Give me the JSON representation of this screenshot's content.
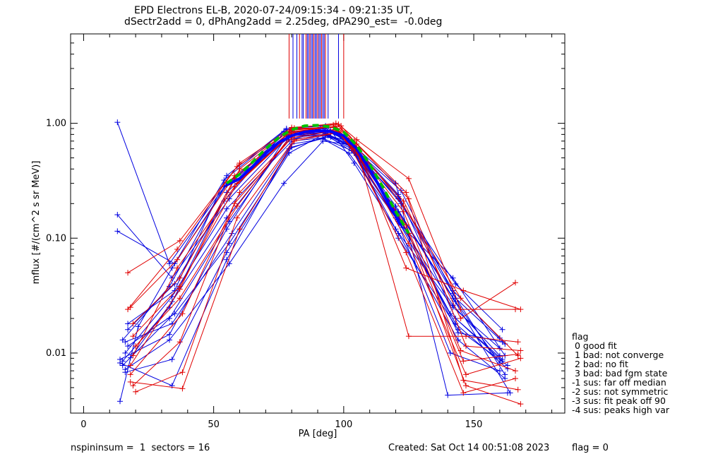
{
  "title_line1": "EPD Electrons EL-B, 2020-07-24/09:15:34 - 09:21:35 UT,",
  "title_line2": "dSectr2add = 0, dPhAng2add = 2.25deg, dPA290_est=  -0.0deg",
  "footer": {
    "left": "nspininsum =  1  sectors = 16",
    "created": "Created: Sat Oct 14 00:51:08 2023",
    "flag": "flag = 0"
  },
  "legend": {
    "title": "flag",
    "items": [
      " 0 good fit",
      " 1 bad: not converge",
      " 2 bad: no fit",
      " 3 bad: bad fgm state",
      "-1 sus: far off median",
      "-2 sus: not symmetric",
      "-3 sus: fit peak off 90",
      "-4 sus: peaks high var"
    ]
  },
  "colors": {
    "red": "#e00000",
    "blue": "#0000e0",
    "fit": "#00c000",
    "mean": "#0000ff"
  },
  "chart_data": {
    "type": "line",
    "xlabel": "PA [deg]",
    "ylabel": "mflux [#/(cm^2 s sr MeV)]",
    "xlim": [
      -5,
      185
    ],
    "ylim": [
      0.003,
      6.0
    ],
    "yscale": "log",
    "xticks": [
      0,
      50,
      100,
      150
    ],
    "xtick_labels": [
      "0",
      "50",
      "100",
      "150"
    ],
    "yticks": [
      0.01,
      0.1,
      1.0
    ],
    "ytick_labels": [
      "0.01",
      "0.10",
      "1.00"
    ],
    "vertical_lines_x": [
      79,
      80.5,
      82,
      83,
      84,
      84.5,
      85.5,
      86,
      86.5,
      87,
      87.5,
      88,
      88.5,
      89,
      89.5,
      90,
      90.5,
      91,
      91.5,
      92,
      92.5,
      93,
      94,
      98,
      100
    ],
    "vertical_lines_ymin": 1.1,
    "series": [
      {
        "color": "blue",
        "x": [
          14,
          21,
          34,
          55,
          78,
          93,
          103,
          121,
          142,
          164
        ],
        "y": [
          0.0038,
          0.017,
          0.055,
          0.29,
          0.72,
          0.78,
          0.6,
          0.17,
          0.03,
          0.0045
        ]
      },
      {
        "color": "blue",
        "x": [
          13,
          34,
          56,
          79,
          94,
          103,
          122,
          142,
          162
        ],
        "y": [
          0.16,
          0.045,
          0.22,
          0.78,
          0.8,
          0.62,
          0.13,
          0.045,
          0.0095
        ]
      },
      {
        "color": "blue",
        "x": [
          13,
          35,
          54,
          77,
          93,
          102,
          121,
          143,
          161
        ],
        "y": [
          0.115,
          0.06,
          0.32,
          0.85,
          0.86,
          0.7,
          0.24,
          0.02,
          0.0088
        ]
      },
      {
        "color": "blue",
        "x": [
          15,
          33,
          55,
          79,
          92,
          104,
          120,
          142,
          160
        ],
        "y": [
          0.0085,
          0.025,
          0.25,
          0.8,
          0.83,
          0.55,
          0.12,
          0.025,
          0.011
        ]
      },
      {
        "color": "blue",
        "x": [
          16,
          34,
          55,
          80,
          95,
          103,
          121,
          144,
          163
        ],
        "y": [
          0.01,
          0.031,
          0.18,
          0.7,
          0.76,
          0.62,
          0.1,
          0.016,
          0.0078
        ]
      },
      {
        "color": "blue",
        "x": [
          15,
          33,
          56,
          79,
          93,
          102,
          120,
          141,
          160
        ],
        "y": [
          0.0078,
          0.02,
          0.14,
          0.75,
          0.8,
          0.65,
          0.15,
          0.01,
          0.007
        ]
      },
      {
        "color": "blue",
        "x": [
          17,
          35,
          54,
          78,
          91,
          101,
          122,
          143,
          162
        ],
        "y": [
          0.016,
          0.04,
          0.21,
          0.88,
          0.92,
          0.72,
          0.2,
          0.03,
          0.012
        ]
      },
      {
        "color": "blue",
        "x": [
          16,
          33,
          56,
          77,
          92,
          103,
          121,
          142,
          160
        ],
        "y": [
          0.0072,
          0.013,
          0.06,
          0.3,
          0.7,
          0.65,
          0.23,
          0.035,
          0.0135
        ]
      },
      {
        "color": "blue",
        "x": [
          14,
          34,
          55,
          79,
          94,
          102,
          120,
          140,
          163
        ],
        "y": [
          0.0082,
          0.0052,
          0.065,
          0.6,
          0.78,
          0.7,
          0.3,
          0.0043,
          0.0045
        ]
      },
      {
        "color": "blue",
        "x": [
          17,
          35,
          55,
          78,
          93,
          103,
          121,
          143,
          161
        ],
        "y": [
          0.018,
          0.035,
          0.35,
          0.9,
          0.95,
          0.62,
          0.22,
          0.04,
          0.016
        ]
      },
      {
        "color": "blue",
        "x": [
          16,
          34,
          57,
          80,
          92,
          102,
          122,
          142,
          160
        ],
        "y": [
          0.0125,
          0.018,
          0.11,
          0.66,
          0.73,
          0.55,
          0.13,
          0.026,
          0.0095
        ]
      },
      {
        "color": "blue",
        "x": [
          18,
          34,
          55,
          79,
          95,
          104,
          121,
          144,
          162
        ],
        "y": [
          0.0091,
          0.028,
          0.15,
          0.72,
          0.87,
          0.45,
          0.11,
          0.013,
          0.006
        ]
      },
      {
        "color": "blue",
        "x": [
          15,
          33,
          54,
          78,
          93,
          102,
          120,
          141,
          161
        ],
        "y": [
          0.013,
          0.038,
          0.28,
          0.83,
          0.9,
          0.68,
          0.17,
          0.022,
          0.0085
        ]
      },
      {
        "color": "blue",
        "x": [
          17,
          35,
          56,
          80,
          92,
          103,
          121,
          143,
          163
        ],
        "y": [
          0.0115,
          0.022,
          0.09,
          0.62,
          0.74,
          0.58,
          0.14,
          0.018,
          0.0073
        ]
      },
      {
        "color": "blue",
        "x": [
          16,
          34,
          55,
          79,
          93,
          102,
          122,
          142,
          162
        ],
        "y": [
          0.0068,
          0.0088,
          0.075,
          0.55,
          0.82,
          0.66,
          0.26,
          0.033,
          0.0065
        ]
      },
      {
        "color": "blue",
        "x": [
          14,
          33,
          55,
          78,
          94,
          101,
          120,
          143,
          160
        ],
        "y": [
          0.0088,
          0.0145,
          0.12,
          0.77,
          0.84,
          0.74,
          0.19,
          0.028,
          0.0082
        ]
      },
      {
        "color": "blue",
        "x": [
          13,
          33,
          55,
          80,
          92,
          104,
          121,
          144,
          161
        ],
        "y": [
          1.02,
          0.06,
          0.3,
          0.82,
          0.85,
          0.6,
          0.16,
          0.015,
          0.0125
        ]
      },
      {
        "color": "red",
        "x": [
          17,
          37,
          60,
          80,
          98,
          105,
          125,
          145,
          166
        ],
        "y": [
          0.05,
          0.095,
          0.45,
          0.92,
          0.98,
          0.72,
          0.33,
          0.024,
          0.024
        ]
      },
      {
        "color": "red",
        "x": [
          18,
          36,
          58,
          81,
          97,
          104,
          124,
          146,
          168
        ],
        "y": [
          0.025,
          0.065,
          0.35,
          0.88,
          0.94,
          0.68,
          0.055,
          0.035,
          0.024
        ]
      },
      {
        "color": "red",
        "x": [
          19,
          37,
          59,
          80,
          96,
          105,
          125,
          147,
          167
        ],
        "y": [
          0.014,
          0.038,
          0.3,
          0.82,
          0.97,
          0.6,
          0.014,
          0.014,
          0.0125
        ]
      },
      {
        "color": "red",
        "x": [
          18,
          38,
          60,
          81,
          99,
          103,
          123,
          145,
          166
        ],
        "y": [
          0.0065,
          0.022,
          0.25,
          0.79,
          0.9,
          0.64,
          0.21,
          0.02,
          0.041
        ]
      },
      {
        "color": "red",
        "x": [
          19,
          37,
          58,
          80,
          97,
          104,
          124,
          146,
          167
        ],
        "y": [
          0.0052,
          0.0125,
          0.2,
          0.75,
          0.86,
          0.59,
          0.13,
          0.0085,
          0.0098
        ]
      },
      {
        "color": "red",
        "x": [
          20,
          38,
          59,
          81,
          98,
          105,
          125,
          147,
          168
        ],
        "y": [
          0.0046,
          0.0068,
          0.15,
          0.72,
          0.84,
          0.55,
          0.09,
          0.0065,
          0.009
        ]
      },
      {
        "color": "red",
        "x": [
          18,
          37,
          60,
          80,
          96,
          103,
          123,
          145,
          166
        ],
        "y": [
          0.0078,
          0.036,
          0.4,
          0.9,
          0.92,
          0.66,
          0.17,
          0.0105,
          0.007
        ]
      },
      {
        "color": "red",
        "x": [
          19,
          36,
          58,
          81,
          99,
          104,
          124,
          146,
          167
        ],
        "y": [
          0.0095,
          0.055,
          0.28,
          0.85,
          0.95,
          0.7,
          0.25,
          0.0058,
          0.0048
        ]
      },
      {
        "color": "red",
        "x": [
          20,
          37,
          59,
          80,
          97,
          105,
          125,
          147,
          168
        ],
        "y": [
          0.0115,
          0.03,
          0.19,
          0.8,
          0.88,
          0.62,
          0.11,
          0.0052,
          0.0036
        ]
      },
      {
        "color": "red",
        "x": [
          18,
          38,
          60,
          81,
          98,
          103,
          124,
          146,
          166
        ],
        "y": [
          0.0056,
          0.0049,
          0.12,
          0.7,
          0.83,
          0.6,
          0.075,
          0.0045,
          0.006
        ]
      },
      {
        "color": "red",
        "x": [
          19,
          37,
          58,
          80,
          96,
          104,
          123,
          145,
          167
        ],
        "y": [
          0.018,
          0.045,
          0.33,
          0.87,
          0.93,
          0.67,
          0.19,
          0.03,
          0.0095
        ]
      },
      {
        "color": "red",
        "x": [
          17,
          36,
          59,
          81,
          97,
          105,
          125,
          147,
          168
        ],
        "y": [
          0.024,
          0.08,
          0.42,
          0.91,
          1.0,
          0.66,
          0.22,
          0.0115,
          0.0105
        ]
      }
    ],
    "mean_curve": {
      "x": [
        55,
        60,
        65,
        70,
        75,
        80,
        85,
        90,
        95,
        100,
        105,
        110,
        115,
        120,
        122
      ],
      "y": [
        0.29,
        0.33,
        0.42,
        0.55,
        0.68,
        0.78,
        0.84,
        0.86,
        0.85,
        0.78,
        0.6,
        0.4,
        0.25,
        0.16,
        0.13
      ]
    },
    "fit_curve": {
      "x": [
        55,
        60,
        65,
        70,
        75,
        80,
        85,
        90,
        95,
        100,
        105,
        110,
        115,
        120,
        125
      ],
      "y": [
        0.3,
        0.36,
        0.46,
        0.6,
        0.75,
        0.88,
        0.95,
        0.96,
        0.93,
        0.84,
        0.64,
        0.44,
        0.28,
        0.17,
        0.11
      ]
    }
  }
}
